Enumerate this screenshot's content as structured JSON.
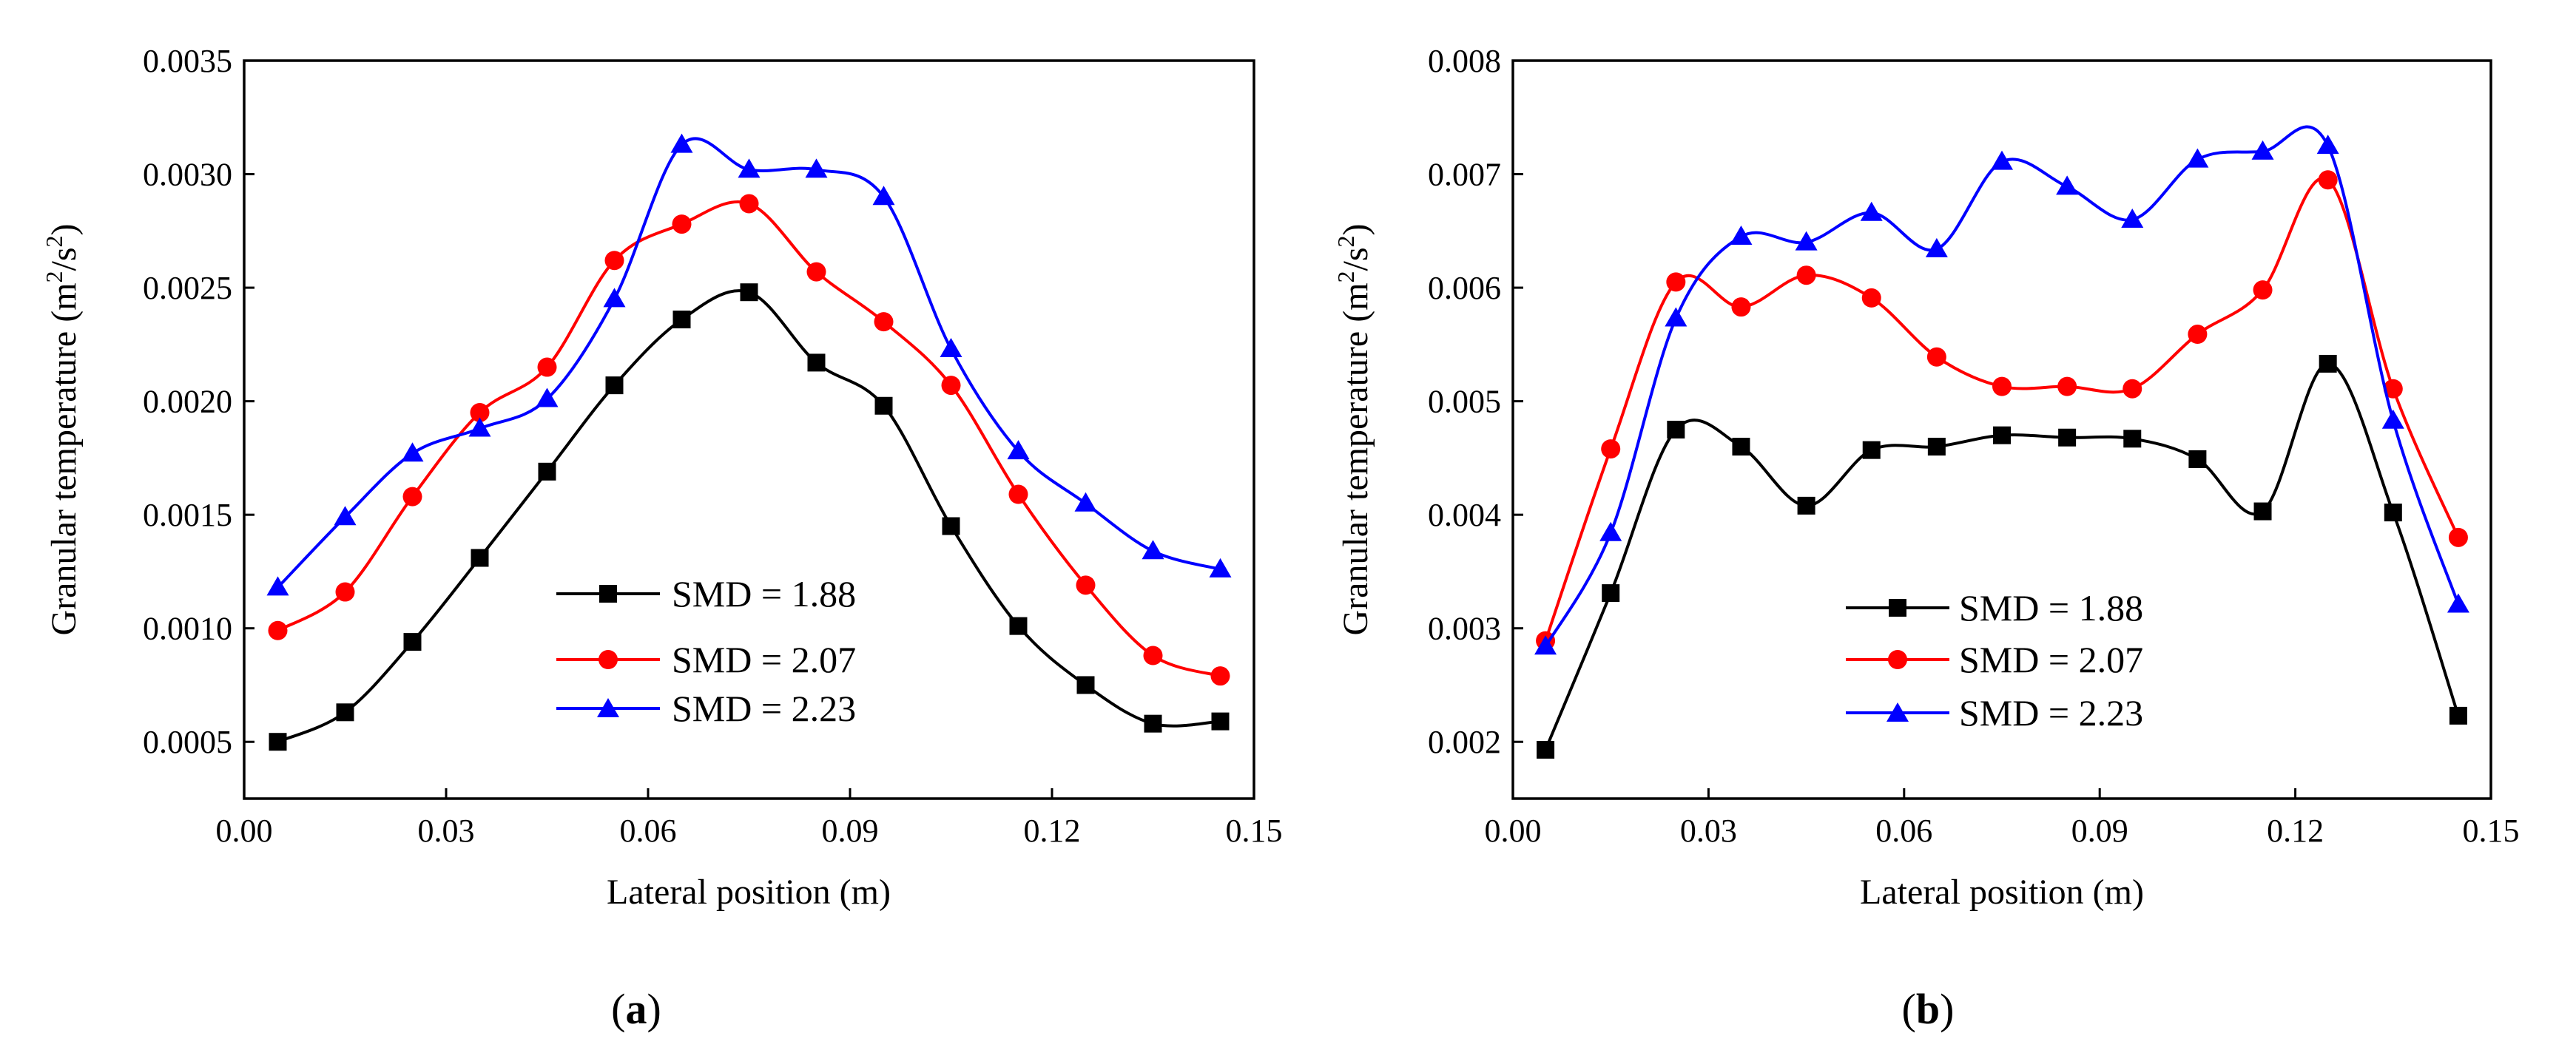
{
  "chart_data": [
    {
      "type": "scatter",
      "panel_label": "a",
      "xlabel": "Lateral position (m)",
      "ylabel": {
        "text": "Granular temperature (m",
        "superscript_a": "2",
        "slash": "/s",
        "superscript_b": "2",
        "close": ")"
      },
      "xlim": [
        0.0,
        0.15
      ],
      "ylim": [
        0.00025,
        0.0035
      ],
      "xticks": [
        0.0,
        0.03,
        0.06,
        0.09,
        0.12,
        0.15
      ],
      "xtick_labels": [
        "0.00",
        "0.03",
        "0.06",
        "0.09",
        "0.12",
        "0.15"
      ],
      "yticks": [
        0.0005,
        0.001,
        0.0015,
        0.002,
        0.0025,
        0.003,
        0.0035
      ],
      "ytick_labels": [
        "0.0005",
        "0.0010",
        "0.0015",
        "0.0020",
        "0.0025",
        "0.0030",
        "0.0035"
      ],
      "legend_position": "bottom-center",
      "x": [
        0.005,
        0.015,
        0.025,
        0.035,
        0.045,
        0.055,
        0.065,
        0.075,
        0.085,
        0.095,
        0.105,
        0.115,
        0.125,
        0.135,
        0.145
      ],
      "series": [
        {
          "name": "SMD = 1.88",
          "color": "#000000",
          "marker": "square",
          "values": [
            0.0005,
            0.00063,
            0.00094,
            0.00131,
            0.00169,
            0.00207,
            0.00236,
            0.00248,
            0.00217,
            0.00198,
            0.00145,
            0.00101,
            0.00075,
            0.00058,
            0.00059
          ]
        },
        {
          "name": "SMD = 2.07",
          "color": "#ff0000",
          "marker": "circle",
          "values": [
            0.00099,
            0.00116,
            0.00158,
            0.00195,
            0.00215,
            0.00262,
            0.00278,
            0.00287,
            0.00257,
            0.00235,
            0.00207,
            0.00159,
            0.00119,
            0.00088,
            0.00079
          ]
        },
        {
          "name": "SMD = 2.23",
          "color": "#0000ff",
          "marker": "triangle",
          "values": [
            0.00118,
            0.00149,
            0.00177,
            0.00188,
            0.00201,
            0.00245,
            0.00313,
            0.00302,
            0.00302,
            0.0029,
            0.00223,
            0.00178,
            0.00155,
            0.00134,
            0.00126
          ]
        }
      ]
    },
    {
      "type": "scatter",
      "panel_label": "b",
      "xlabel": "Lateral position (m)",
      "ylabel": {
        "text": "Granular temperature (m",
        "superscript_a": "2",
        "slash": "/s",
        "superscript_b": "2",
        "close": ")"
      },
      "xlim": [
        0.0,
        0.15
      ],
      "ylim": [
        0.0015,
        0.008
      ],
      "xticks": [
        0.0,
        0.03,
        0.06,
        0.09,
        0.12,
        0.15
      ],
      "xtick_labels": [
        "0.00",
        "0.03",
        "0.06",
        "0.09",
        "0.12",
        "0.15"
      ],
      "yticks": [
        0.002,
        0.003,
        0.004,
        0.005,
        0.006,
        0.007,
        0.008
      ],
      "ytick_labels": [
        "0.002",
        "0.003",
        "0.004",
        "0.005",
        "0.006",
        "0.007",
        "0.008"
      ],
      "legend_position": "bottom-center",
      "x": [
        0.005,
        0.015,
        0.025,
        0.035,
        0.045,
        0.055,
        0.065,
        0.075,
        0.085,
        0.095,
        0.105,
        0.115,
        0.125,
        0.135,
        0.145
      ],
      "series": [
        {
          "name": "SMD = 1.88",
          "color": "#000000",
          "marker": "square",
          "values": [
            0.00193,
            0.00331,
            0.00475,
            0.0046,
            0.00408,
            0.00457,
            0.0046,
            0.0047,
            0.00468,
            0.00467,
            0.00449,
            0.00403,
            0.00533,
            0.00402,
            0.00223
          ]
        },
        {
          "name": "SMD = 2.07",
          "color": "#ff0000",
          "marker": "circle",
          "values": [
            0.00289,
            0.00458,
            0.00605,
            0.00583,
            0.00611,
            0.00591,
            0.00539,
            0.00513,
            0.00513,
            0.00511,
            0.00559,
            0.00598,
            0.00695,
            0.00511,
            0.0038
          ]
        },
        {
          "name": "SMD = 2.23",
          "color": "#0000ff",
          "marker": "triangle",
          "values": [
            0.00284,
            0.00384,
            0.00573,
            0.00645,
            0.0064,
            0.00666,
            0.00634,
            0.00711,
            0.00689,
            0.0066,
            0.00713,
            0.0072,
            0.00725,
            0.00483,
            0.00321
          ]
        }
      ]
    }
  ],
  "captions": [
    {
      "open": "(",
      "label": "a",
      "close": ")"
    },
    {
      "open": "(",
      "label": "b",
      "close": ")"
    }
  ]
}
